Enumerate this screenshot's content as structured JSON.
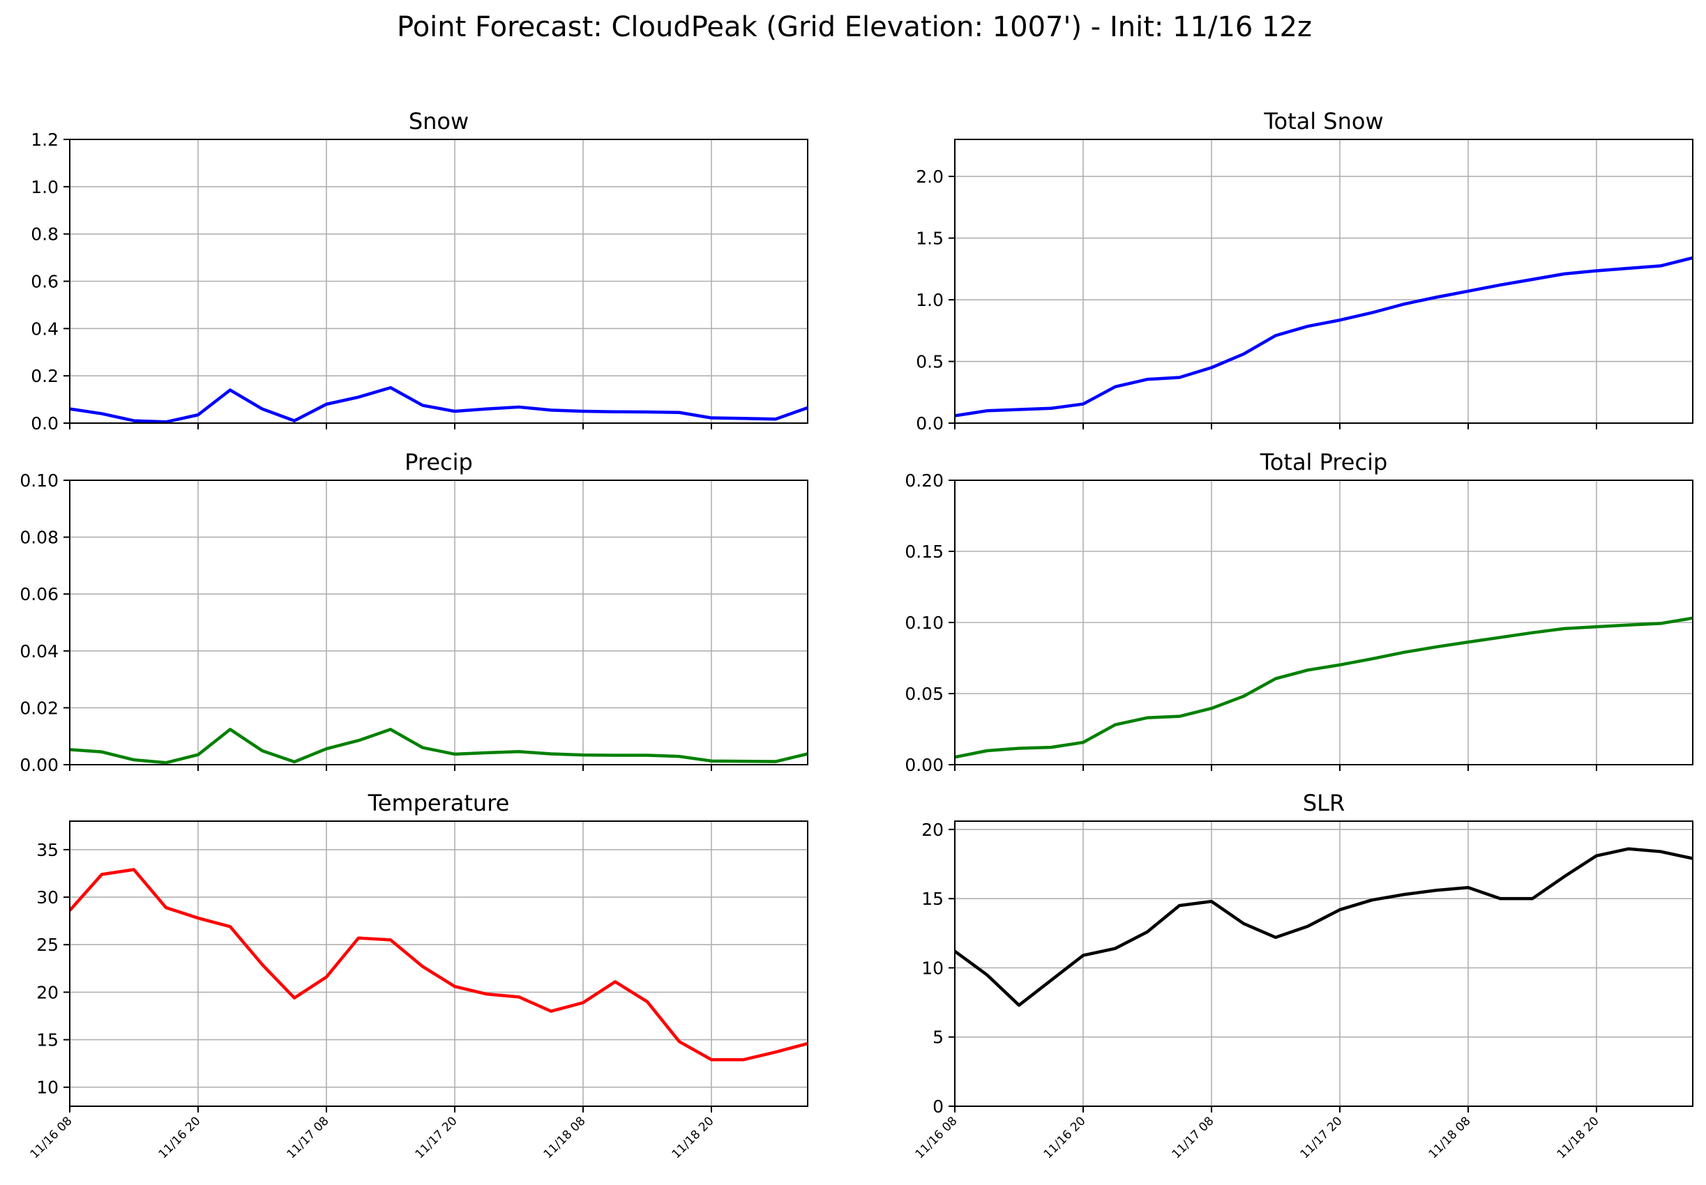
{
  "figure": {
    "suptitle": "Point Forecast: CloudPeak (Grid Elevation: 1007') - Init: 11/16 12z"
  },
  "chart_data": [
    {
      "type": "line",
      "id": "snow",
      "title": "Snow",
      "xlabel": "",
      "ylabel": "",
      "color": "#0000ff",
      "x": [
        "11/16 08",
        "11/16 11",
        "11/16 14",
        "11/16 17",
        "11/16 20",
        "11/16 23",
        "11/17 02",
        "11/17 05",
        "11/17 08",
        "11/17 11",
        "11/17 14",
        "11/17 17",
        "11/17 20",
        "11/17 23",
        "11/18 02",
        "11/18 05",
        "11/18 08",
        "11/18 11",
        "11/18 14",
        "11/18 17",
        "11/18 20",
        "11/18 23",
        "11/19 02",
        "11/19 05"
      ],
      "values": [
        0.06,
        0.04,
        0.01,
        0.005,
        0.035,
        0.14,
        0.06,
        0.01,
        0.08,
        0.11,
        0.15,
        0.075,
        0.05,
        0.06,
        0.068,
        0.055,
        0.05,
        0.048,
        0.047,
        0.045,
        0.022,
        0.02,
        0.017,
        0.065
      ],
      "ylim": [
        0,
        1.2
      ],
      "yticks": [
        "0.0",
        "0.2",
        "0.4",
        "0.6",
        "0.8",
        "1.0",
        "1.2"
      ],
      "xticks": [
        "11/16 08",
        "11/16 20",
        "11/17 08",
        "11/17 20",
        "11/18 08",
        "11/18 20"
      ],
      "show_xticklabels": false,
      "grid": true
    },
    {
      "type": "line",
      "id": "total-snow",
      "title": "Total Snow",
      "xlabel": "",
      "ylabel": "",
      "color": "#0000ff",
      "x": [
        "11/16 08",
        "11/16 11",
        "11/16 14",
        "11/16 17",
        "11/16 20",
        "11/16 23",
        "11/17 02",
        "11/17 05",
        "11/17 08",
        "11/17 11",
        "11/17 14",
        "11/17 17",
        "11/17 20",
        "11/17 23",
        "11/18 02",
        "11/18 05",
        "11/18 08",
        "11/18 11",
        "11/18 14",
        "11/18 17",
        "11/18 20",
        "11/18 23",
        "11/19 02",
        "11/19 05"
      ],
      "values": [
        0.06,
        0.1,
        0.11,
        0.12,
        0.155,
        0.295,
        0.355,
        0.37,
        0.45,
        0.56,
        0.71,
        0.785,
        0.835,
        0.895,
        0.965,
        1.02,
        1.07,
        1.12,
        1.165,
        1.21,
        1.235,
        1.255,
        1.275,
        1.34
      ],
      "ylim": [
        0,
        2.3
      ],
      "yticks": [
        "0.0",
        "0.5",
        "1.0",
        "1.5",
        "2.0"
      ],
      "ytick_values": [
        0,
        0.5,
        1,
        1.5,
        2
      ],
      "xticks": [
        "11/16 08",
        "11/16 20",
        "11/17 08",
        "11/17 20",
        "11/18 08",
        "11/18 20"
      ],
      "show_xticklabels": false,
      "grid": true
    },
    {
      "type": "line",
      "id": "precip",
      "title": "Precip",
      "xlabel": "",
      "ylabel": "",
      "color": "#008000",
      "x": [
        "11/16 08",
        "11/16 11",
        "11/16 14",
        "11/16 17",
        "11/16 20",
        "11/16 23",
        "11/17 02",
        "11/17 05",
        "11/17 08",
        "11/17 11",
        "11/17 14",
        "11/17 17",
        "11/17 20",
        "11/17 23",
        "11/18 02",
        "11/18 05",
        "11/18 08",
        "11/18 11",
        "11/18 14",
        "11/18 17",
        "11/18 20",
        "11/18 23",
        "11/19 02",
        "11/19 05"
      ],
      "values": [
        0.0053,
        0.0045,
        0.0017,
        0.0007,
        0.0035,
        0.0124,
        0.0049,
        0.001,
        0.0056,
        0.0085,
        0.0124,
        0.006,
        0.0037,
        0.0042,
        0.0046,
        0.0038,
        0.0034,
        0.0033,
        0.0033,
        0.0029,
        0.0013,
        0.0012,
        0.0011,
        0.0038
      ],
      "ylim": [
        0,
        0.1
      ],
      "yticks": [
        "0.00",
        "0.02",
        "0.04",
        "0.06",
        "0.08",
        "0.10"
      ],
      "xticks": [
        "11/16 08",
        "11/16 20",
        "11/17 08",
        "11/17 20",
        "11/18 08",
        "11/18 20"
      ],
      "show_xticklabels": false,
      "grid": true
    },
    {
      "type": "line",
      "id": "total-precip",
      "title": "Total Precip",
      "xlabel": "",
      "ylabel": "",
      "color": "#008000",
      "x": [
        "11/16 08",
        "11/16 11",
        "11/16 14",
        "11/16 17",
        "11/16 20",
        "11/16 23",
        "11/17 02",
        "11/17 05",
        "11/17 08",
        "11/17 11",
        "11/17 14",
        "11/17 17",
        "11/17 20",
        "11/17 23",
        "11/18 02",
        "11/18 05",
        "11/18 08",
        "11/18 11",
        "11/18 14",
        "11/18 17",
        "11/18 20",
        "11/18 23",
        "11/19 02",
        "11/19 05"
      ],
      "values": [
        0.0053,
        0.0098,
        0.0115,
        0.0122,
        0.0157,
        0.0281,
        0.033,
        0.034,
        0.0396,
        0.0481,
        0.0605,
        0.0665,
        0.0702,
        0.0744,
        0.079,
        0.0828,
        0.0862,
        0.0895,
        0.0928,
        0.0957,
        0.097,
        0.0982,
        0.0993,
        0.1031
      ],
      "ylim": [
        0,
        0.2
      ],
      "yticks": [
        "0.00",
        "0.05",
        "0.10",
        "0.15",
        "0.20"
      ],
      "xticks": [
        "11/16 08",
        "11/16 20",
        "11/17 08",
        "11/17 20",
        "11/18 08",
        "11/18 20"
      ],
      "show_xticklabels": false,
      "grid": true
    },
    {
      "type": "line",
      "id": "temperature",
      "title": "Temperature",
      "xlabel": "",
      "ylabel": "",
      "color": "#ff0000",
      "x": [
        "11/16 08",
        "11/16 11",
        "11/16 14",
        "11/16 17",
        "11/16 20",
        "11/16 23",
        "11/17 02",
        "11/17 05",
        "11/17 08",
        "11/17 11",
        "11/17 14",
        "11/17 17",
        "11/17 20",
        "11/17 23",
        "11/18 02",
        "11/18 05",
        "11/18 08",
        "11/18 11",
        "11/18 14",
        "11/18 17",
        "11/18 20",
        "11/18 23",
        "11/19 02",
        "11/19 05"
      ],
      "values": [
        28.6,
        32.4,
        32.9,
        28.9,
        27.8,
        26.9,
        22.9,
        19.4,
        21.6,
        25.7,
        25.5,
        22.7,
        20.6,
        19.8,
        19.5,
        18.0,
        18.9,
        21.1,
        19.0,
        14.8,
        12.9,
        12.9,
        13.7,
        14.6
      ],
      "ylim": [
        8,
        38
      ],
      "yticks": [
        "10",
        "15",
        "20",
        "25",
        "30",
        "35"
      ],
      "ytick_values": [
        10,
        15,
        20,
        25,
        30,
        35
      ],
      "xticks": [
        "11/16 08",
        "11/16 20",
        "11/17 08",
        "11/17 20",
        "11/18 08",
        "11/18 20"
      ],
      "show_xticklabels": true,
      "grid": true
    },
    {
      "type": "line",
      "id": "slr",
      "title": "SLR",
      "xlabel": "",
      "ylabel": "",
      "color": "#000000",
      "x": [
        "11/16 08",
        "11/16 11",
        "11/16 14",
        "11/16 17",
        "11/16 20",
        "11/16 23",
        "11/17 02",
        "11/17 05",
        "11/17 08",
        "11/17 11",
        "11/17 14",
        "11/17 17",
        "11/17 20",
        "11/17 23",
        "11/18 02",
        "11/18 05",
        "11/18 08",
        "11/18 11",
        "11/18 14",
        "11/18 17",
        "11/18 20",
        "11/18 23",
        "11/19 02",
        "11/19 05"
      ],
      "values": [
        11.2,
        9.5,
        7.3,
        9.1,
        10.9,
        11.4,
        12.6,
        14.5,
        14.8,
        13.2,
        12.2,
        13.0,
        14.2,
        14.9,
        15.3,
        15.6,
        15.8,
        15.0,
        15.0,
        16.6,
        18.1,
        18.6,
        18.4,
        17.9
      ],
      "ylim": [
        0,
        20.6
      ],
      "yticks": [
        "0",
        "5",
        "10",
        "15",
        "20"
      ],
      "ytick_values": [
        0,
        5,
        10,
        15,
        20
      ],
      "xticks": [
        "11/16 08",
        "11/16 20",
        "11/17 08",
        "11/17 20",
        "11/18 08",
        "11/18 20"
      ],
      "show_xticklabels": true,
      "grid": true
    }
  ]
}
